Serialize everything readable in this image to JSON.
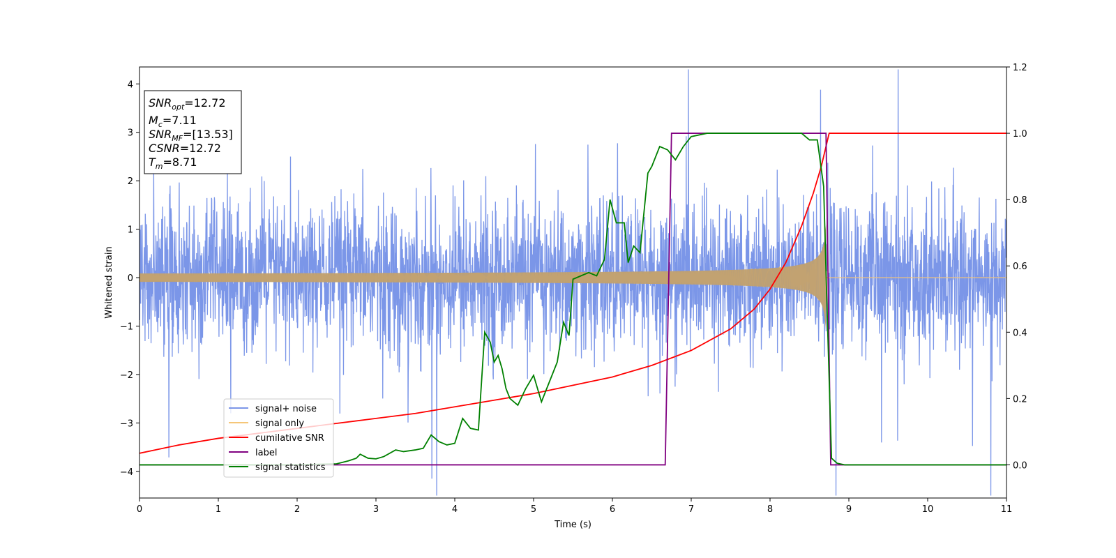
{
  "chart_data": {
    "type": "line",
    "xlabel": "Time (s)",
    "ylabel": "Whitened strain",
    "xlim": [
      0,
      11
    ],
    "ylim_left": [
      -4.55,
      4.35
    ],
    "ylim_right": [
      -0.1,
      1.2
    ],
    "x_ticks": [
      0,
      1,
      2,
      3,
      4,
      5,
      6,
      7,
      8,
      9,
      10,
      11
    ],
    "y_ticks_left": [
      -4,
      -3,
      -2,
      -1,
      0,
      1,
      2,
      3,
      4
    ],
    "y_ticks_right": [
      0.0,
      0.2,
      0.4,
      0.6,
      0.8,
      1.0,
      1.2
    ],
    "grid": false,
    "legend_position": "lower-left",
    "annotation": {
      "lines": [
        {
          "sym": "SNR",
          "sub": "opt",
          "value": "=12.72"
        },
        {
          "sym": "M",
          "sub": "c",
          "value": "=7.11"
        },
        {
          "sym": "SNR",
          "sub": "MF",
          "value": "=[13.53]"
        },
        {
          "sym": "CSNR",
          "sub": "",
          "value": "=12.72"
        },
        {
          "sym": "T",
          "sub": "m",
          "value": "=8.71"
        }
      ]
    },
    "series": [
      {
        "name": "signal+ noise",
        "axis": "left",
        "color": "#7b96e8",
        "kind": "noise",
        "merger_time": 8.71,
        "typical_amplitude": 1.0,
        "extreme_range": [
          -4.15,
          3.88
        ]
      },
      {
        "name": "signal only",
        "axis": "left",
        "color": "#f5c678",
        "kind": "chirp",
        "merger_time": 8.71,
        "amplitude_start": 0.05,
        "amplitude_peak": 1.1
      },
      {
        "name": "cumilative SNR",
        "axis": "right",
        "color": "#ff0000",
        "x": [
          0,
          0.5,
          1,
          1.5,
          2,
          2.5,
          3,
          3.5,
          4,
          4.5,
          5,
          5.5,
          6,
          6.5,
          7,
          7.5,
          7.8,
          8.0,
          8.2,
          8.4,
          8.55,
          8.65,
          8.71,
          8.75,
          11
        ],
        "y": [
          0.035,
          0.06,
          0.08,
          0.095,
          0.11,
          0.125,
          0.14,
          0.155,
          0.175,
          0.195,
          0.215,
          0.24,
          0.265,
          0.3,
          0.345,
          0.41,
          0.47,
          0.53,
          0.61,
          0.72,
          0.82,
          0.9,
          0.96,
          1.0,
          1.0
        ]
      },
      {
        "name": "label",
        "axis": "right",
        "color": "#800080",
        "x": [
          0,
          6.67,
          6.75,
          8.71,
          8.77,
          11
        ],
        "y": [
          0,
          0,
          1,
          1,
          0,
          0
        ]
      },
      {
        "name": "signal statistics",
        "axis": "right",
        "color": "#008000",
        "x": [
          0,
          1,
          2,
          2.5,
          2.65,
          2.75,
          2.8,
          2.9,
          3.0,
          3.1,
          3.25,
          3.35,
          3.5,
          3.6,
          3.7,
          3.8,
          3.9,
          4.0,
          4.1,
          4.2,
          4.3,
          4.38,
          4.45,
          4.5,
          4.55,
          4.6,
          4.65,
          4.7,
          4.8,
          4.9,
          5.0,
          5.1,
          5.2,
          5.3,
          5.38,
          5.45,
          5.5,
          5.6,
          5.7,
          5.8,
          5.9,
          5.97,
          6.05,
          6.15,
          6.2,
          6.27,
          6.35,
          6.45,
          6.5,
          6.6,
          6.7,
          6.8,
          6.9,
          7.0,
          7.2,
          7.4,
          7.6,
          7.8,
          8.0,
          8.2,
          8.4,
          8.5,
          8.6,
          8.68,
          8.72,
          8.78,
          8.85,
          8.95,
          9.2,
          11
        ],
        "y": [
          0,
          0,
          0,
          0.003,
          0.012,
          0.02,
          0.032,
          0.02,
          0.018,
          0.025,
          0.045,
          0.04,
          0.045,
          0.05,
          0.09,
          0.07,
          0.06,
          0.065,
          0.14,
          0.11,
          0.105,
          0.4,
          0.37,
          0.31,
          0.33,
          0.29,
          0.23,
          0.2,
          0.18,
          0.23,
          0.27,
          0.19,
          0.25,
          0.31,
          0.43,
          0.39,
          0.56,
          0.57,
          0.58,
          0.57,
          0.62,
          0.8,
          0.73,
          0.73,
          0.61,
          0.66,
          0.64,
          0.88,
          0.9,
          0.96,
          0.95,
          0.92,
          0.96,
          0.99,
          1.0,
          1.0,
          1.0,
          1.0,
          1.0,
          1.0,
          1.0,
          0.98,
          0.98,
          0.84,
          0.5,
          0.02,
          0.005,
          0.0,
          0.0,
          0.0
        ]
      }
    ]
  }
}
